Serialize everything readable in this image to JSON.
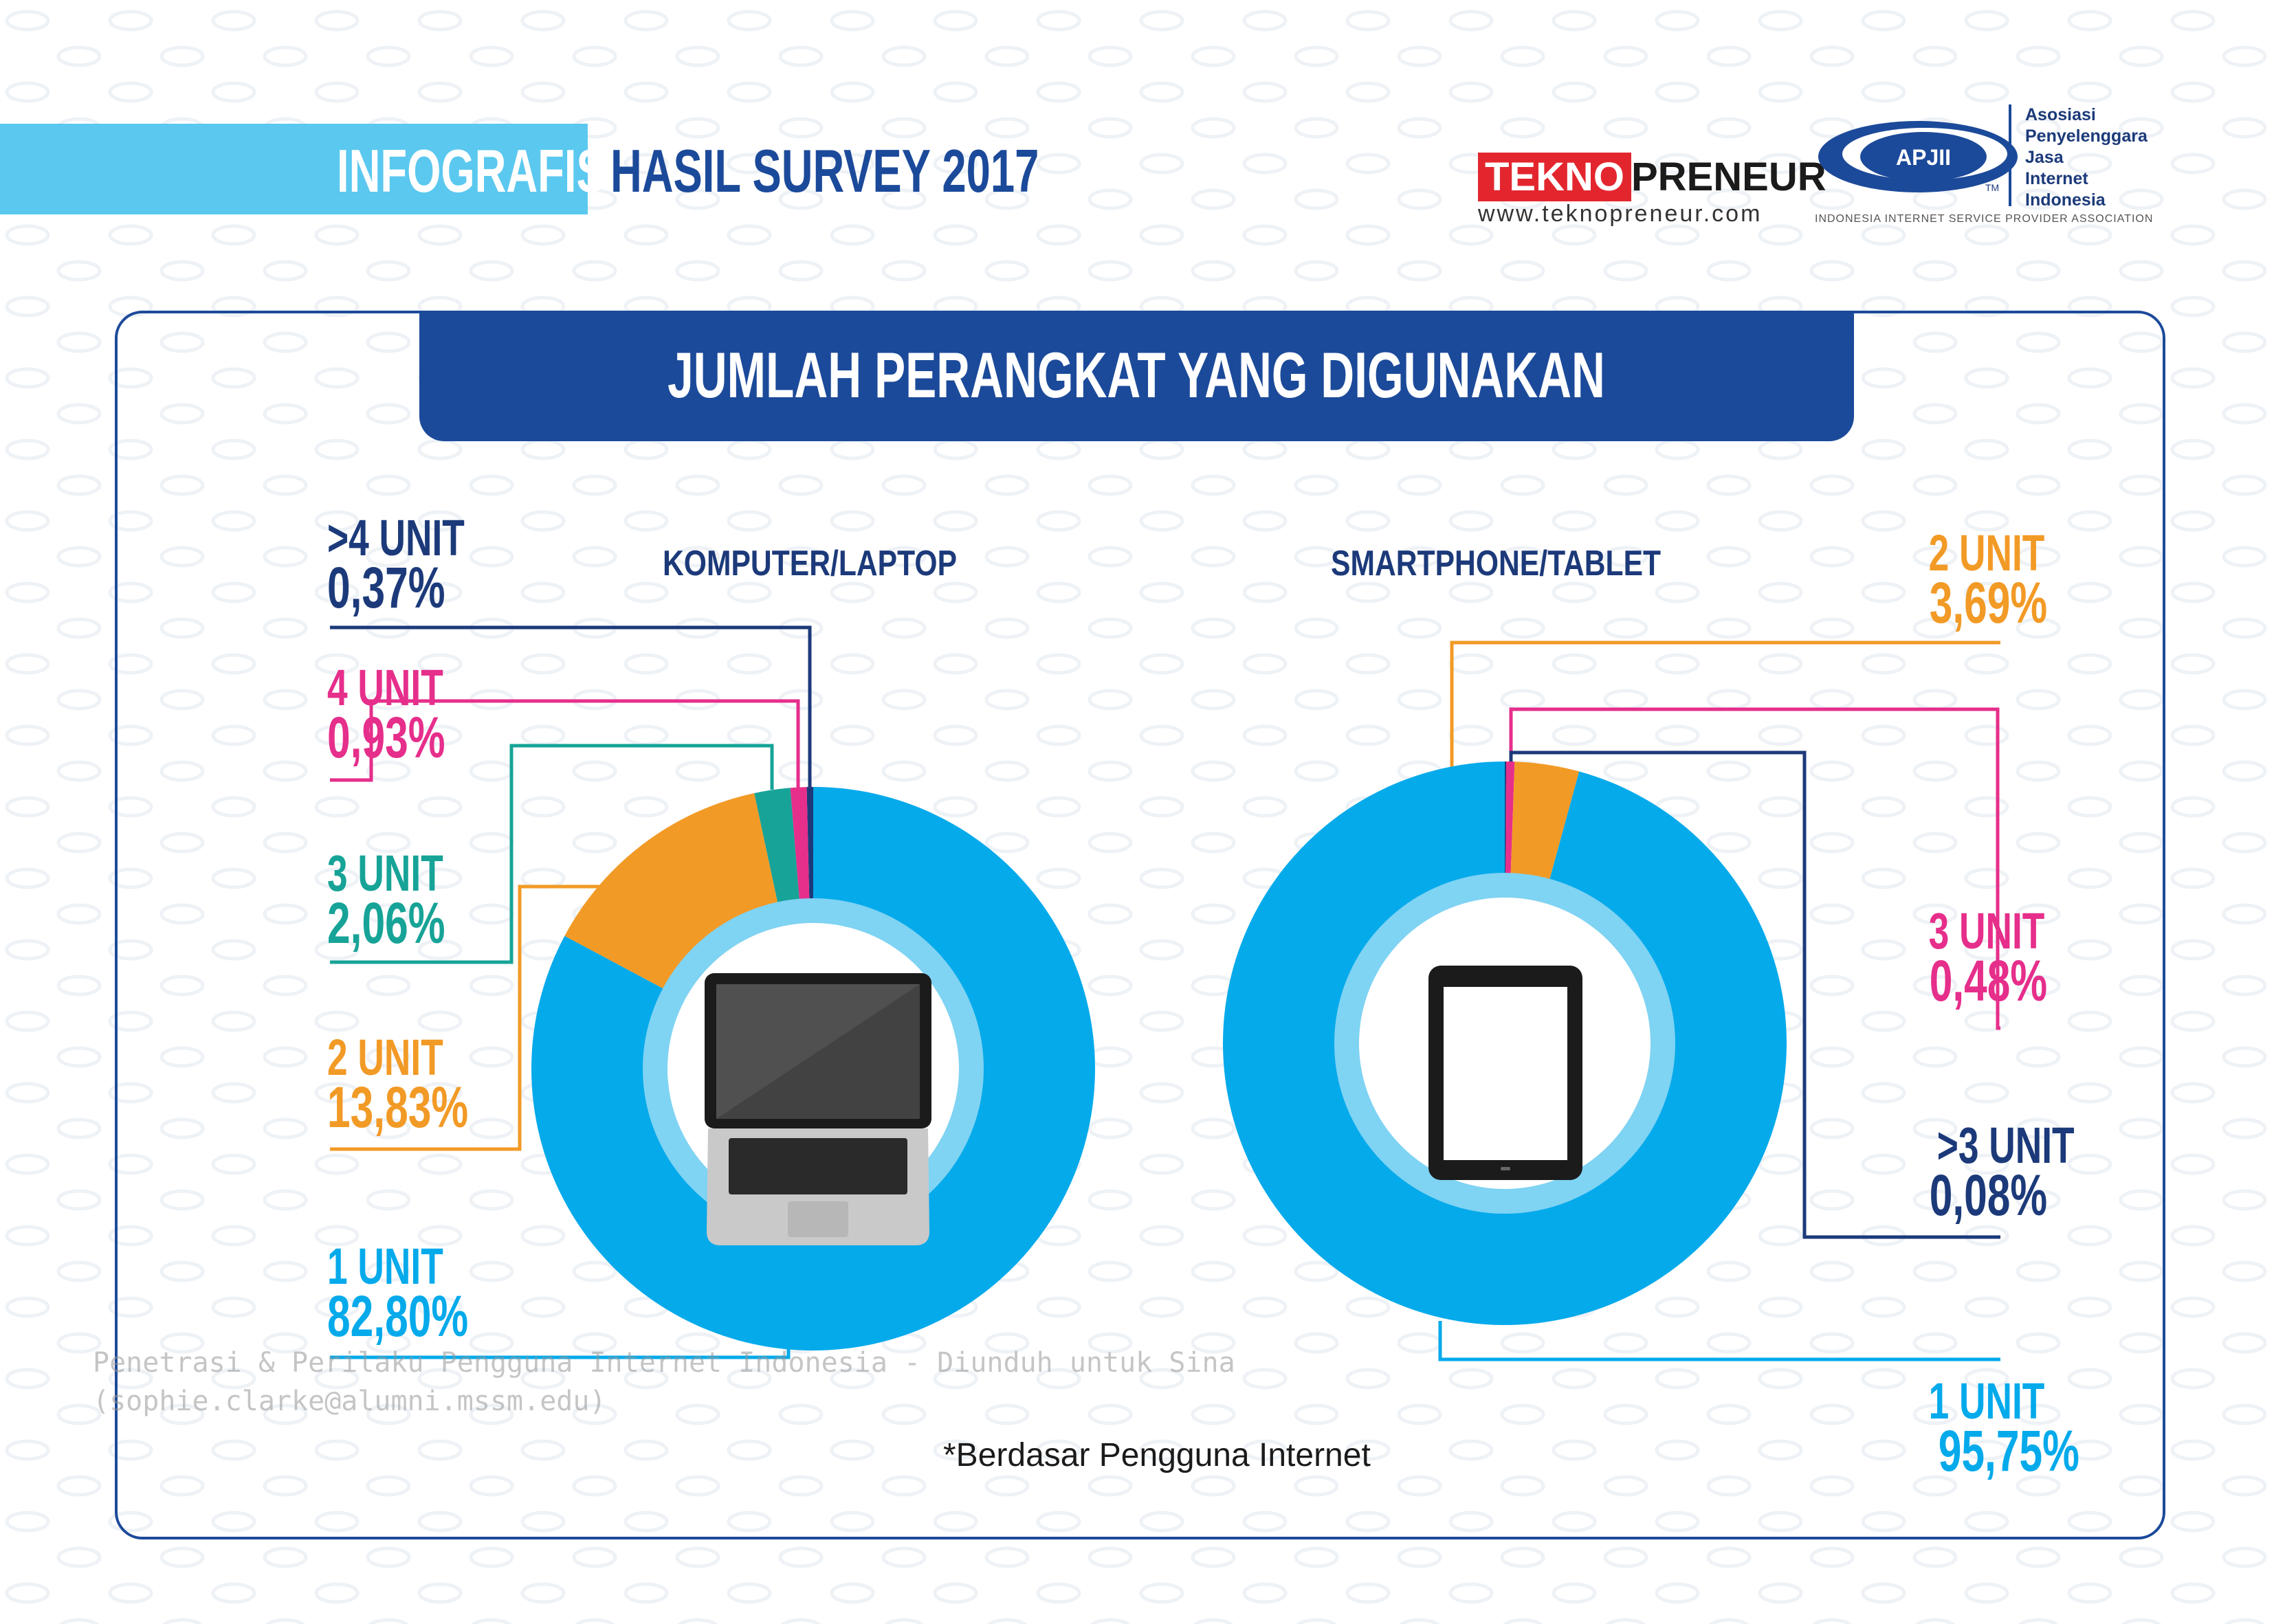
{
  "header": {
    "infografis": "INFOGRAFIS",
    "survey": "HASIL SURVEY 2017"
  },
  "logos": {
    "tekno_red": "TEKNO",
    "tekno_rest": "PRENEUR",
    "tekno_url": "www.teknopreneur.com",
    "apjii_mark": "APJII",
    "apjii_tm": "TM",
    "apjii_lines": [
      "Asosiasi",
      "Penyelenggara",
      "Jasa",
      "Internet",
      "Indonesia"
    ],
    "apjii_sub": "INDONESIA INTERNET SERVICE PROVIDER ASSOCIATION"
  },
  "title": "JUMLAH PERANGKAT YANG DIGUNAKAN",
  "footnote": "*Berdasar Pengguna Internet",
  "watermark": [
    "Penetrasi & Perilaku Pengguna Internet Indonesia - Diunduh untuk Sina",
    "(sophie.clarke@alumni.mssm.edu)"
  ],
  "colors": {
    "blue_main": "#05aaeb",
    "orange": "#f29a26",
    "teal": "#17a397",
    "pink": "#e62e8b",
    "navy": "#1c3a7a",
    "ring_light": "#7fd3f3"
  },
  "icons": {
    "left_center": "laptop-icon",
    "right_center": "tablet-icon"
  },
  "chart_data": [
    {
      "type": "pie",
      "variant": "donut",
      "title": "KOMPUTER/LAPTOP",
      "categories": [
        "1 UNIT",
        "2 UNIT",
        "3 UNIT",
        "4 UNIT",
        ">4 UNIT"
      ],
      "values": [
        82.8,
        13.83,
        2.06,
        0.93,
        0.37
      ],
      "labels": [
        "82,80%",
        "13,83%",
        "2,06%",
        "0,93%",
        "0,37%"
      ],
      "colors": [
        "#05aaeb",
        "#f29a26",
        "#17a397",
        "#e62e8b",
        "#1c3a7a"
      ],
      "unit": "%"
    },
    {
      "type": "pie",
      "variant": "donut",
      "title": "SMARTPHONE/TABLET",
      "categories": [
        "1 UNIT",
        "2 UNIT",
        "3 UNIT",
        ">3 UNIT"
      ],
      "values": [
        95.75,
        3.69,
        0.48,
        0.08
      ],
      "labels": [
        "95,75%",
        "3,69%",
        "0,48%",
        "0,08%"
      ],
      "colors": [
        "#05aaeb",
        "#f29a26",
        "#e62e8b",
        "#1c3a7a"
      ],
      "unit": "%"
    }
  ]
}
